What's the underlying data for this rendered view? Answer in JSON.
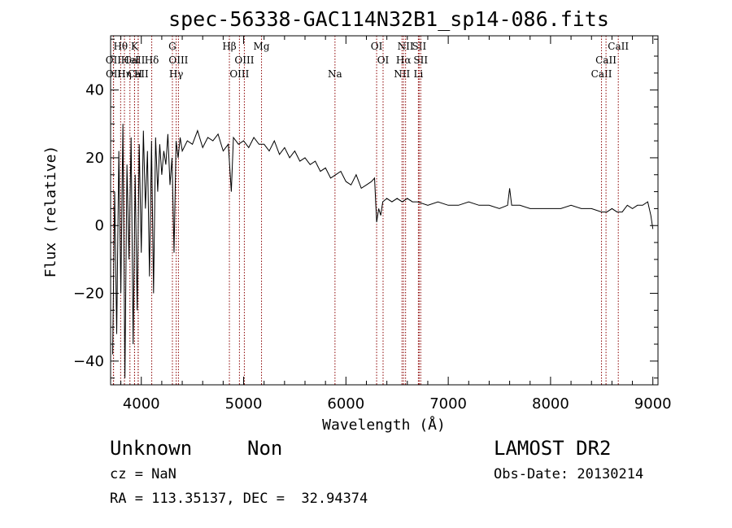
{
  "chart_data": {
    "type": "line",
    "title": "spec-56338-GAC114N32B1_sp14-086.fits",
    "xlabel": "Wavelength (Å)",
    "ylabel": "Flux (relative)",
    "xlim": [
      3700,
      9050
    ],
    "ylim": [
      -47,
      56
    ],
    "xticks": [
      4000,
      5000,
      6000,
      7000,
      8000,
      9000
    ],
    "yticks": [
      -40,
      -20,
      0,
      20,
      40
    ],
    "grid": false,
    "series": [
      {
        "x": [
          3720,
          3740,
          3760,
          3780,
          3800,
          3820,
          3840,
          3860,
          3880,
          3900,
          3920,
          3940,
          3960,
          3980,
          4000,
          4020,
          4040,
          4060,
          4080,
          4100,
          4120,
          4140,
          4160,
          4180,
          4200,
          4220,
          4240,
          4260,
          4280,
          4300,
          4320,
          4340,
          4360,
          4380,
          4400,
          4450,
          4500,
          4550,
          4600,
          4650,
          4700,
          4750,
          4800,
          4850,
          4880,
          4900,
          4950,
          5000,
          5050,
          5100,
          5150,
          5200,
          5250,
          5300,
          5350,
          5400,
          5450,
          5500,
          5550,
          5600,
          5650,
          5700,
          5750,
          5800,
          5850,
          5900,
          5950,
          6000,
          6050,
          6100,
          6150,
          6200,
          6250,
          6280,
          6300,
          6320,
          6340,
          6360,
          6400,
          6450,
          6500,
          6550,
          6600,
          6650,
          6700,
          6800,
          6900,
          7000,
          7100,
          7200,
          7300,
          7400,
          7500,
          7580,
          7600,
          7620,
          7700,
          7800,
          7900,
          8000,
          8100,
          8200,
          8300,
          8400,
          8500,
          8550,
          8600,
          8650,
          8700,
          8750,
          8800,
          8850,
          8900,
          8950,
          8980,
          9000
        ],
        "y": [
          -38,
          10,
          -32,
          22,
          -20,
          30,
          -45,
          18,
          -10,
          26,
          -35,
          15,
          -25,
          24,
          -8,
          28,
          5,
          22,
          -15,
          25,
          -20,
          26,
          10,
          24,
          15,
          22,
          18,
          27,
          12,
          20,
          -8,
          25,
          20,
          26,
          22,
          25,
          24,
          28,
          23,
          26,
          25,
          27,
          22,
          24,
          10,
          26,
          24,
          25,
          23,
          26,
          24,
          24,
          22,
          25,
          21,
          23,
          20,
          22,
          19,
          20,
          18,
          19,
          16,
          17,
          14,
          15,
          16,
          13,
          12,
          15,
          11,
          12,
          13,
          14,
          1,
          5,
          3,
          7,
          8,
          7,
          8,
          7,
          8,
          7,
          7,
          6,
          7,
          6,
          6,
          7,
          6,
          6,
          5,
          6,
          11,
          6,
          6,
          5,
          5,
          5,
          5,
          6,
          5,
          5,
          4,
          4,
          5,
          4,
          4,
          6,
          5,
          6,
          6,
          7,
          3,
          -1
        ]
      }
    ],
    "line_markers": [
      {
        "name": "CaII",
        "x": 3934,
        "row": 1
      },
      {
        "name": "CaII",
        "x": 3969,
        "row": 2
      },
      {
        "name": "H",
        "x": 3970,
        "row": 2
      },
      {
        "name": "K",
        "x": 3934,
        "row": 0
      },
      {
        "name": "Hθ",
        "x": 3798,
        "row": 0
      },
      {
        "name": "Hη",
        "x": 3835,
        "row": 2
      },
      {
        "name": "HeI",
        "x": 3889,
        "row": 1
      },
      {
        "name": "OII",
        "x": 3727,
        "row": 1
      },
      {
        "name": "OII",
        "x": 3729,
        "row": 2
      },
      {
        "name": "Hδ",
        "x": 4102,
        "row": 1
      },
      {
        "name": "G",
        "x": 4304,
        "row": 0
      },
      {
        "name": "OIII",
        "x": 4363,
        "row": 1
      },
      {
        "name": "Hγ",
        "x": 4341,
        "row": 2
      },
      {
        "name": "Hβ",
        "x": 4861,
        "row": 0
      },
      {
        "name": "OIII",
        "x": 4959,
        "row": 2
      },
      {
        "name": "OIII",
        "x": 5007,
        "row": 1
      },
      {
        "name": "Mg",
        "x": 5175,
        "row": 0
      },
      {
        "name": "Na",
        "x": 5893,
        "row": 2
      },
      {
        "name": "OI",
        "x": 6300,
        "row": 0
      },
      {
        "name": "OI",
        "x": 6363,
        "row": 1
      },
      {
        "name": "NII",
        "x": 6548,
        "row": 2
      },
      {
        "name": "Hα",
        "x": 6563,
        "row": 1
      },
      {
        "name": "NII",
        "x": 6583,
        "row": 0
      },
      {
        "name": "Li",
        "x": 6708,
        "row": 2
      },
      {
        "name": "SII",
        "x": 6716,
        "row": 0
      },
      {
        "name": "SII",
        "x": 6731,
        "row": 1
      },
      {
        "name": "CaII",
        "x": 8498,
        "row": 2
      },
      {
        "name": "CaII",
        "x": 8542,
        "row": 1
      },
      {
        "name": "CaII",
        "x": 8662,
        "row": 0
      }
    ]
  },
  "info": {
    "class": "Unknown",
    "subclass": "Non",
    "survey": "LAMOST DR2",
    "cz": "cz = NaN",
    "obs_date": "Obs-Date: 20130214",
    "coords": "RA = 113.35137, DEC =  32.94374"
  },
  "colors": {
    "spectrum": "#000000",
    "line_marker": "#8b0000",
    "axes": "#000000"
  }
}
